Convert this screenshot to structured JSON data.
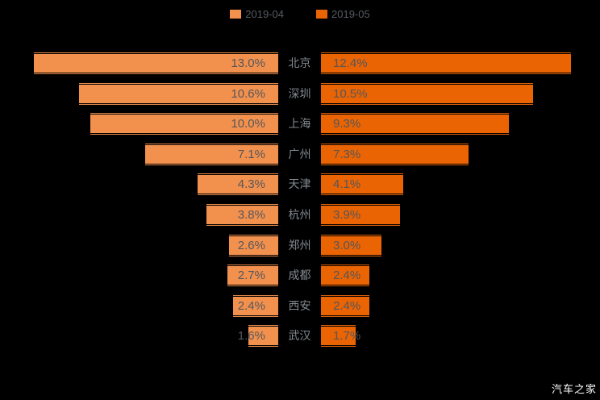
{
  "legend": {
    "items": [
      {
        "label": "2019-04",
        "color": "#F2914E"
      },
      {
        "label": "2019-05",
        "color": "#EA6404"
      }
    ]
  },
  "watermark": "汽车之家",
  "chart_data": {
    "type": "bar",
    "variant": "tornado-horizontal",
    "background": "#000000",
    "value_suffix": "%",
    "categories": [
      "北京",
      "深圳",
      "上海",
      "广州",
      "天津",
      "杭州",
      "郑州",
      "成都",
      "西安",
      "武汉"
    ],
    "series": [
      {
        "name": "2019-04",
        "color": "#F2914E",
        "side": "left",
        "values": [
          13.0,
          10.6,
          10.0,
          7.1,
          4.3,
          3.8,
          2.6,
          2.7,
          2.4,
          1.6
        ]
      },
      {
        "name": "2019-05",
        "color": "#EA6404",
        "side": "right",
        "values": [
          12.4,
          10.5,
          9.3,
          7.3,
          4.1,
          3.9,
          3.0,
          2.4,
          2.4,
          1.7
        ]
      }
    ],
    "legend_position": "top",
    "axis_labels_position": "center",
    "grid": false
  }
}
